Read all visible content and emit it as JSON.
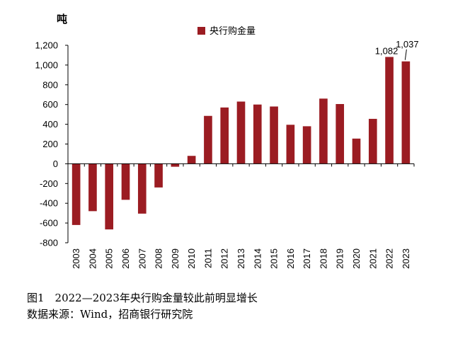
{
  "chart_data": {
    "type": "bar",
    "unit_label": "吨",
    "legend": "央行购金量",
    "legend_placement": "top-center",
    "categories": [
      "2003",
      "2004",
      "2005",
      "2006",
      "2007",
      "2008",
      "2009",
      "2010",
      "2011",
      "2012",
      "2013",
      "2014",
      "2015",
      "2016",
      "2017",
      "2018",
      "2019",
      "2020",
      "2021",
      "2022",
      "2023"
    ],
    "series": [
      {
        "name": "央行购金量",
        "values": [
          -620,
          -480,
          -665,
          -365,
          -505,
          -240,
          -30,
          80,
          485,
          570,
          630,
          600,
          580,
          395,
          380,
          660,
          605,
          255,
          455,
          1082,
          1037
        ],
        "color": "#9B1C22"
      }
    ],
    "data_labels": {
      "2022": "1,082",
      "2023": "1,037"
    },
    "yticks": [
      1200,
      1000,
      800,
      600,
      400,
      200,
      0,
      -200,
      -400,
      -600,
      -800
    ],
    "ytick_labels": [
      "1,200",
      "1,000",
      "800",
      "600",
      "400",
      "200",
      "0",
      "-200",
      "-400",
      "-600",
      "-800"
    ],
    "ylim": [
      -800,
      1200
    ],
    "grid": false
  },
  "caption": {
    "title": "图1　2022—2023年央行购金量较此前明显增长",
    "source": "数据来源：Wind，招商银行研究院"
  }
}
